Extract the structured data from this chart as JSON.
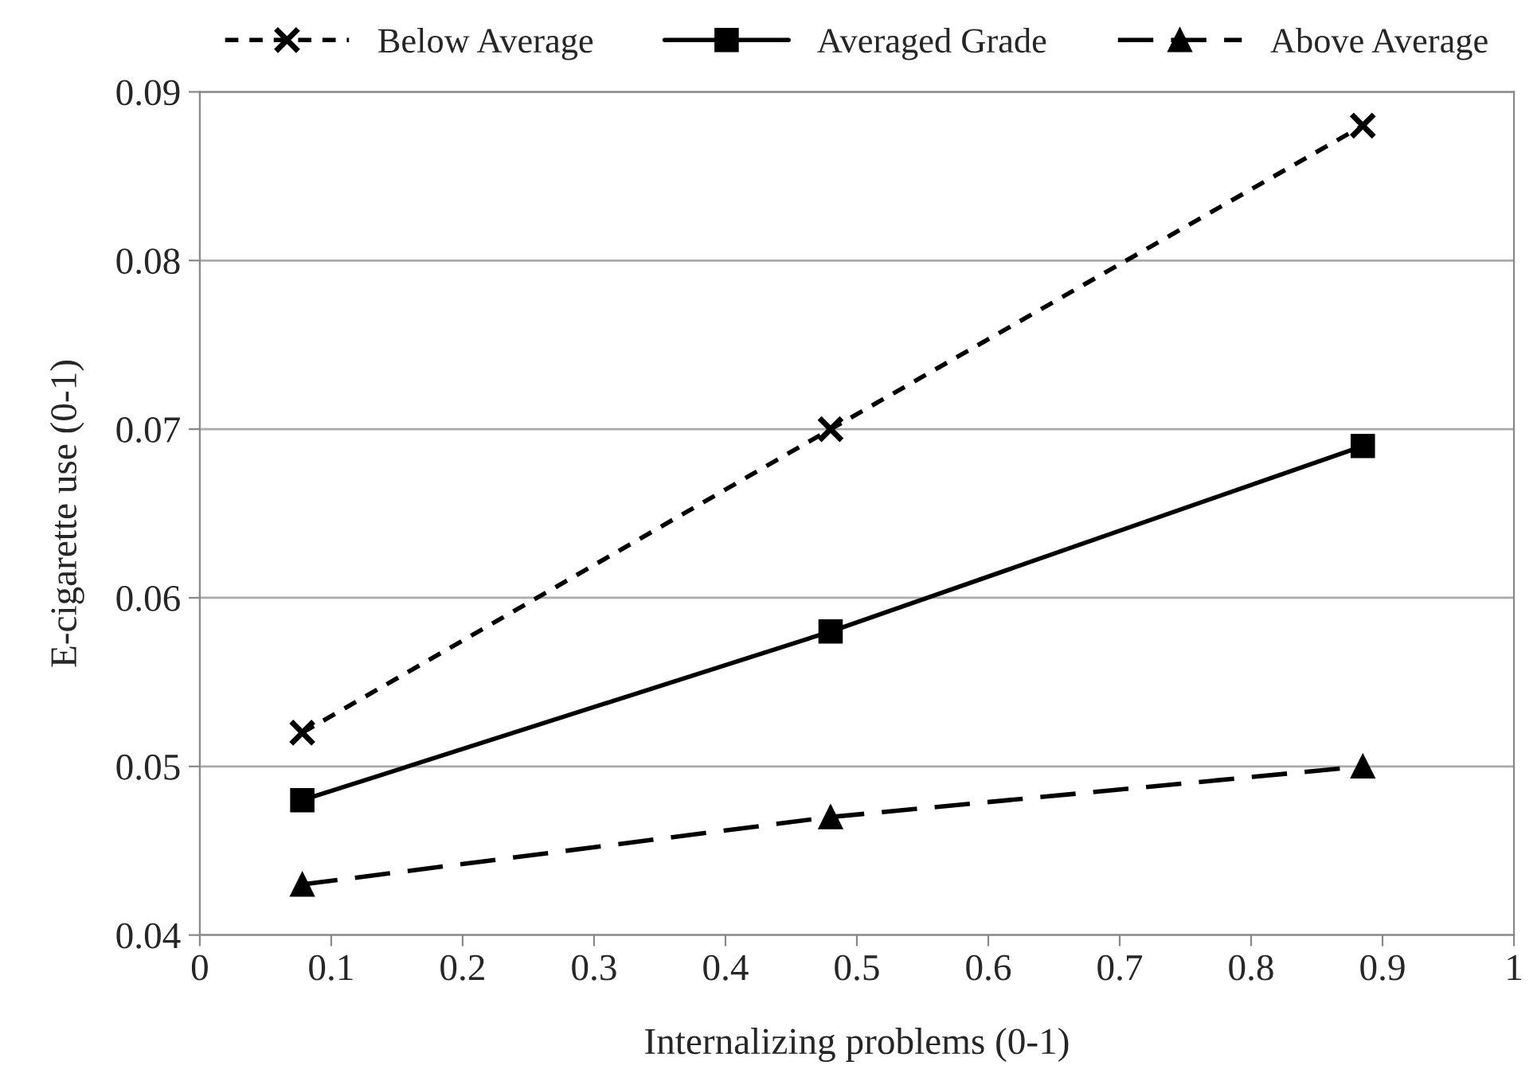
{
  "chart_data": {
    "type": "line",
    "xlabel": "Internalizing problems (0-1)",
    "ylabel": "E-cigarette use (0-1)",
    "x": [
      0.078,
      0.48,
      0.885
    ],
    "series": [
      {
        "name": "Below Average",
        "color": "#000000",
        "values": [
          0.052,
          0.07,
          0.088
        ],
        "marker": "cross",
        "line_style": "dotted"
      },
      {
        "name": "Averaged Grade",
        "color": "#000000",
        "values": [
          0.048,
          0.058,
          0.069
        ],
        "marker": "square",
        "line_style": "solid"
      },
      {
        "name": "Above Average",
        "color": "#000000",
        "values": [
          0.043,
          0.047,
          0.05
        ],
        "marker": "triangle",
        "line_style": "dashed"
      }
    ],
    "xlim": [
      0,
      1
    ],
    "xticks": [
      0,
      0.1,
      0.2,
      0.3,
      0.4,
      0.5,
      0.6,
      0.7,
      0.8,
      0.9,
      1
    ],
    "ylim": [
      0.04,
      0.09
    ],
    "yticks": [
      0.04,
      0.05,
      0.06,
      0.07,
      0.08,
      0.09
    ],
    "grid": "y",
    "legend": "top"
  }
}
